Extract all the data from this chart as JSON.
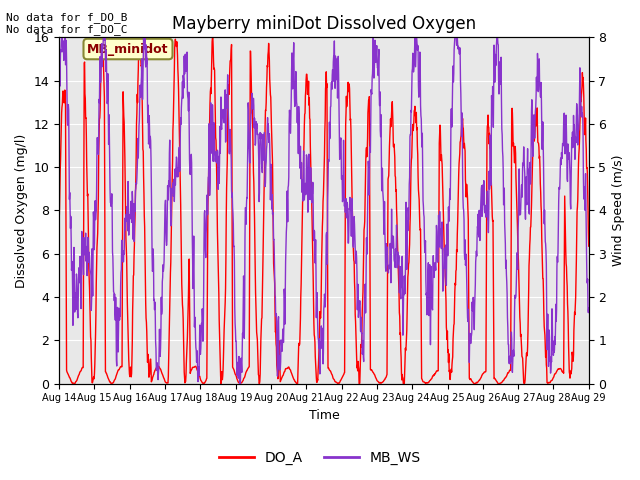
{
  "title": "Mayberry miniDot Dissolved Oxygen",
  "xlabel": "Time",
  "ylabel_left": "Dissolved Oxygen (mg/l)",
  "ylabel_right": "Wind Speed (m/s)",
  "top_left_text": "No data for f_DO_B\nNo data for f_DO_C",
  "box_label": "MB_minidot",
  "legend_entries": [
    "DO_A",
    "MB_WS"
  ],
  "do_color": "#ff0000",
  "ws_color": "#8833cc",
  "ylim_left": [
    0,
    16
  ],
  "ylim_right": [
    0,
    8
  ],
  "yticks_left": [
    0,
    2,
    4,
    6,
    8,
    10,
    12,
    14,
    16
  ],
  "yticks_right": [
    0.0,
    1.0,
    2.0,
    3.0,
    4.0,
    5.0,
    6.0,
    7.0,
    8.0
  ],
  "xtick_labels": [
    "Aug 14",
    "Aug 15",
    "Aug 16",
    "Aug 17",
    "Aug 18",
    "Aug 19",
    "Aug 20",
    "Aug 21",
    "Aug 22",
    "Aug 23",
    "Aug 24",
    "Aug 25",
    "Aug 26",
    "Aug 27",
    "Aug 28",
    "Aug 29"
  ],
  "background_color": "#e8e8e8",
  "fig_background": "#ffffff",
  "do_linewidth": 1.0,
  "ws_linewidth": 1.0
}
